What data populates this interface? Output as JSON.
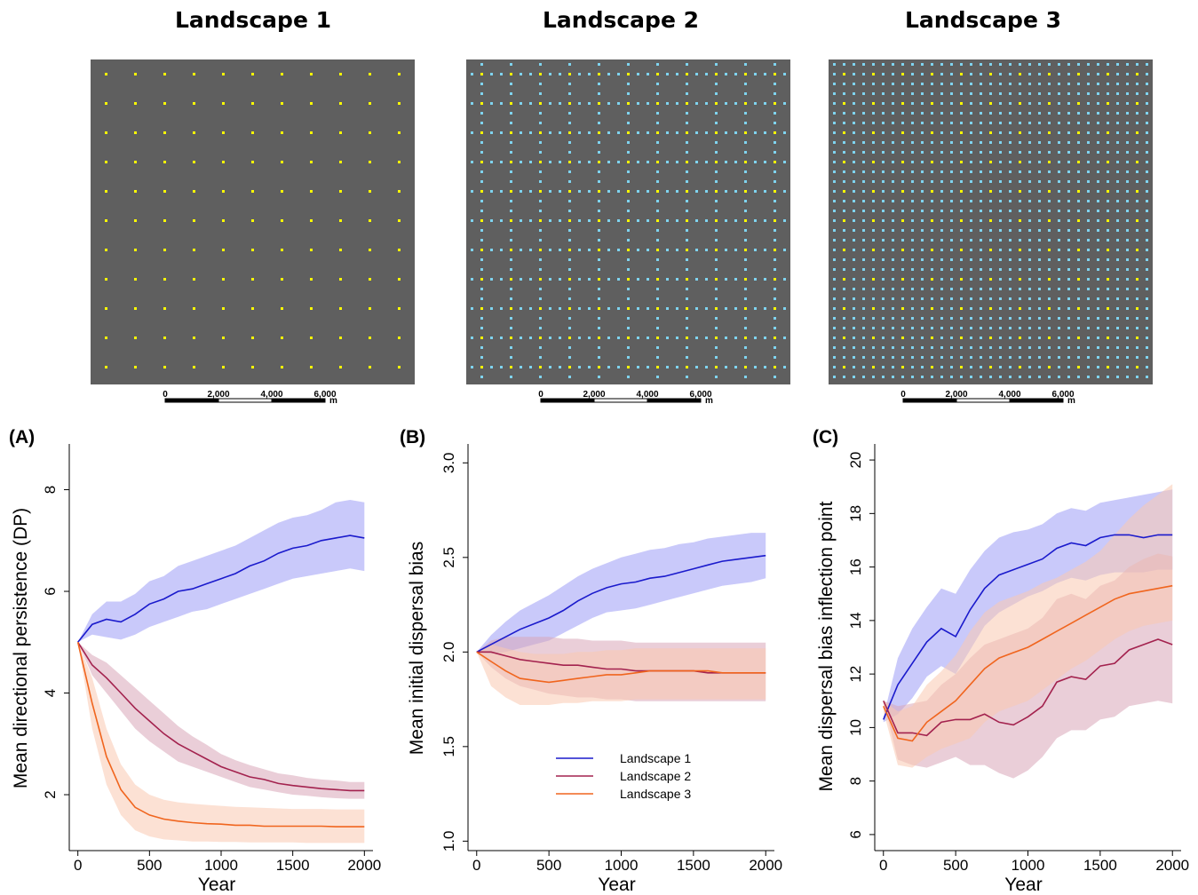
{
  "landscapes": [
    {
      "title": "Landscape 1",
      "scale_ticks": [
        "0",
        "2,000",
        "4,000",
        "6,000"
      ],
      "scale_unit": "m"
    },
    {
      "title": "Landscape 2",
      "scale_ticks": [
        "0",
        "2,000",
        "4,000",
        "6,000"
      ],
      "scale_unit": "m"
    },
    {
      "title": "Landscape 3",
      "scale_ticks": [
        "0",
        "2,000",
        "4,000",
        "6,000"
      ],
      "scale_unit": "m"
    }
  ],
  "colors": {
    "map_background": "#5f5f5f",
    "patch_yellow": "#ffff00",
    "patch_cyan": "#7fd4f0",
    "landscape1": "#1a1acc",
    "landscape2": "#a3224e",
    "landscape3": "#f0651e",
    "band1": "#9d9df5",
    "band2": "#d9a6b8",
    "band3": "#f9c8b0"
  },
  "chart_data": [
    {
      "type": "line",
      "panel_label": "(A)",
      "xlabel": "Year",
      "ylabel": "Mean directional persistence (DP)",
      "xlim": [
        -60,
        2060
      ],
      "ylim": [
        0.9,
        8.9
      ],
      "xticks": [
        0,
        500,
        1000,
        1500,
        2000
      ],
      "yticks": [
        2,
        4,
        6,
        8
      ],
      "x": [
        0,
        100,
        200,
        300,
        400,
        500,
        600,
        700,
        800,
        900,
        1000,
        1100,
        1200,
        1300,
        1400,
        1500,
        1600,
        1700,
        1800,
        1900,
        2000
      ],
      "series": [
        {
          "name": "Landscape 1",
          "values": [
            5.0,
            5.35,
            5.45,
            5.4,
            5.55,
            5.75,
            5.85,
            6.0,
            6.05,
            6.15,
            6.25,
            6.35,
            6.5,
            6.6,
            6.75,
            6.85,
            6.9,
            7.0,
            7.05,
            7.1,
            7.05
          ],
          "lower": [
            5.0,
            5.15,
            5.1,
            5.05,
            5.15,
            5.3,
            5.4,
            5.5,
            5.6,
            5.65,
            5.75,
            5.85,
            5.95,
            6.05,
            6.15,
            6.25,
            6.3,
            6.35,
            6.4,
            6.45,
            6.4
          ],
          "upper": [
            5.0,
            5.55,
            5.8,
            5.8,
            5.95,
            6.2,
            6.3,
            6.5,
            6.6,
            6.7,
            6.8,
            6.9,
            7.05,
            7.2,
            7.35,
            7.45,
            7.5,
            7.6,
            7.75,
            7.8,
            7.75
          ]
        },
        {
          "name": "Landscape 2",
          "values": [
            5.0,
            4.55,
            4.3,
            4.0,
            3.7,
            3.45,
            3.2,
            3.0,
            2.85,
            2.7,
            2.55,
            2.45,
            2.35,
            2.3,
            2.22,
            2.18,
            2.15,
            2.12,
            2.1,
            2.08,
            2.08
          ],
          "lower": [
            5.0,
            4.35,
            4.0,
            3.65,
            3.3,
            3.05,
            2.85,
            2.65,
            2.55,
            2.45,
            2.35,
            2.25,
            2.15,
            2.1,
            2.05,
            2.0,
            1.98,
            1.95,
            1.93,
            1.92,
            1.92
          ],
          "upper": [
            5.0,
            4.75,
            4.6,
            4.35,
            4.1,
            3.85,
            3.6,
            3.35,
            3.15,
            2.98,
            2.8,
            2.68,
            2.58,
            2.5,
            2.42,
            2.38,
            2.33,
            2.3,
            2.28,
            2.25,
            2.25
          ]
        },
        {
          "name": "Landscape 3",
          "values": [
            5.0,
            3.8,
            2.75,
            2.1,
            1.75,
            1.6,
            1.52,
            1.48,
            1.45,
            1.43,
            1.42,
            1.4,
            1.4,
            1.38,
            1.38,
            1.38,
            1.38,
            1.38,
            1.37,
            1.37,
            1.37
          ],
          "lower": [
            5.0,
            3.3,
            2.2,
            1.6,
            1.3,
            1.18,
            1.12,
            1.1,
            1.08,
            1.08,
            1.07,
            1.07,
            1.06,
            1.06,
            1.06,
            1.06,
            1.05,
            1.05,
            1.05,
            1.05,
            1.05
          ],
          "upper": [
            5.0,
            4.3,
            3.3,
            2.6,
            2.2,
            2.0,
            1.9,
            1.85,
            1.82,
            1.8,
            1.78,
            1.76,
            1.75,
            1.74,
            1.73,
            1.72,
            1.72,
            1.72,
            1.71,
            1.71,
            1.71
          ]
        }
      ]
    },
    {
      "type": "line",
      "panel_label": "(B)",
      "xlabel": "Year",
      "ylabel": "Mean initial dispersal bias",
      "xlim": [
        -60,
        2060
      ],
      "ylim": [
        0.95,
        3.1
      ],
      "xticks": [
        0,
        500,
        1000,
        1500,
        2000
      ],
      "yticks": [
        1.0,
        1.5,
        2.0,
        2.5,
        3.0
      ],
      "ytick_labels": [
        "1.0",
        "1.5",
        "2.0",
        "2.5",
        "3.0"
      ],
      "legend": {
        "placement": "center",
        "entries": [
          "Landscape 1",
          "Landscape 2",
          "Landscape 3"
        ]
      },
      "x": [
        0,
        100,
        200,
        300,
        400,
        500,
        600,
        700,
        800,
        900,
        1000,
        1100,
        1200,
        1300,
        1400,
        1500,
        1600,
        1700,
        1800,
        1900,
        2000
      ],
      "series": [
        {
          "name": "Landscape 1",
          "values": [
            2.0,
            2.04,
            2.08,
            2.12,
            2.15,
            2.18,
            2.22,
            2.27,
            2.31,
            2.34,
            2.36,
            2.37,
            2.39,
            2.4,
            2.42,
            2.44,
            2.46,
            2.48,
            2.49,
            2.5,
            2.51
          ],
          "lower": [
            2.0,
            1.99,
            2.0,
            2.02,
            2.04,
            2.06,
            2.1,
            2.14,
            2.18,
            2.21,
            2.22,
            2.23,
            2.25,
            2.27,
            2.29,
            2.31,
            2.33,
            2.35,
            2.36,
            2.37,
            2.39
          ],
          "upper": [
            2.0,
            2.09,
            2.16,
            2.22,
            2.26,
            2.3,
            2.35,
            2.4,
            2.44,
            2.47,
            2.5,
            2.52,
            2.54,
            2.55,
            2.57,
            2.58,
            2.6,
            2.61,
            2.62,
            2.63,
            2.63
          ]
        },
        {
          "name": "Landscape 2",
          "values": [
            2.0,
            2.0,
            1.98,
            1.96,
            1.95,
            1.94,
            1.93,
            1.93,
            1.92,
            1.91,
            1.91,
            1.9,
            1.9,
            1.9,
            1.9,
            1.9,
            1.89,
            1.89,
            1.89,
            1.89,
            1.89
          ],
          "lower": [
            2.0,
            1.92,
            1.86,
            1.82,
            1.8,
            1.78,
            1.77,
            1.76,
            1.76,
            1.75,
            1.75,
            1.74,
            1.74,
            1.74,
            1.74,
            1.74,
            1.74,
            1.74,
            1.74,
            1.74,
            1.74
          ],
          "upper": [
            2.0,
            2.06,
            2.08,
            2.08,
            2.08,
            2.08,
            2.07,
            2.07,
            2.06,
            2.06,
            2.06,
            2.05,
            2.05,
            2.05,
            2.05,
            2.05,
            2.05,
            2.05,
            2.05,
            2.05,
            2.05
          ]
        },
        {
          "name": "Landscape 3",
          "values": [
            2.0,
            1.95,
            1.9,
            1.86,
            1.85,
            1.84,
            1.85,
            1.86,
            1.87,
            1.88,
            1.88,
            1.89,
            1.9,
            1.9,
            1.9,
            1.9,
            1.9,
            1.89,
            1.89,
            1.89,
            1.89
          ],
          "lower": [
            2.0,
            1.82,
            1.76,
            1.72,
            1.72,
            1.72,
            1.73,
            1.73,
            1.74,
            1.74,
            1.74,
            1.75,
            1.75,
            1.75,
            1.75,
            1.75,
            1.75,
            1.75,
            1.75,
            1.75,
            1.75
          ],
          "upper": [
            2.0,
            2.04,
            2.02,
            2.0,
            1.99,
            1.99,
            1.99,
            2.0,
            2.0,
            2.01,
            2.01,
            2.02,
            2.02,
            2.02,
            2.02,
            2.02,
            2.02,
            2.02,
            2.02,
            2.02,
            2.02
          ]
        }
      ]
    },
    {
      "type": "line",
      "panel_label": "(C)",
      "xlabel": "Year",
      "ylabel": "Mean dispersal bias inflection point",
      "xlim": [
        -60,
        2060
      ],
      "ylim": [
        5.4,
        20.6
      ],
      "xticks": [
        0,
        500,
        1000,
        1500,
        2000
      ],
      "yticks": [
        6,
        8,
        10,
        12,
        14,
        16,
        18,
        20
      ],
      "x": [
        0,
        100,
        200,
        300,
        400,
        500,
        600,
        700,
        800,
        900,
        1000,
        1100,
        1200,
        1300,
        1400,
        1500,
        1600,
        1700,
        1800,
        1900,
        2000
      ],
      "series": [
        {
          "name": "Landscape 1",
          "values": [
            10.3,
            11.6,
            12.4,
            13.2,
            13.7,
            13.4,
            14.4,
            15.2,
            15.7,
            15.9,
            16.1,
            16.3,
            16.7,
            16.9,
            16.8,
            17.1,
            17.2,
            17.2,
            17.1,
            17.2,
            17.2
          ],
          "lower": [
            10.2,
            10.5,
            11.1,
            11.9,
            12.3,
            12.0,
            12.9,
            13.8,
            14.3,
            14.6,
            14.9,
            15.1,
            15.4,
            15.6,
            15.5,
            15.7,
            15.8,
            15.8,
            15.8,
            15.9,
            15.9
          ],
          "upper": [
            10.4,
            12.6,
            13.7,
            14.5,
            15.2,
            15.0,
            15.9,
            16.6,
            17.1,
            17.3,
            17.4,
            17.6,
            18.0,
            18.2,
            18.1,
            18.4,
            18.5,
            18.6,
            18.7,
            18.8,
            18.9
          ]
        },
        {
          "name": "Landscape 2",
          "values": [
            11.0,
            9.8,
            9.8,
            9.7,
            10.2,
            10.3,
            10.3,
            10.5,
            10.2,
            10.1,
            10.4,
            10.8,
            11.7,
            11.9,
            11.8,
            12.3,
            12.4,
            12.9,
            13.1,
            13.3,
            13.1
          ],
          "lower": [
            11.0,
            8.8,
            8.6,
            8.5,
            8.7,
            8.9,
            8.6,
            8.6,
            8.3,
            8.1,
            8.4,
            8.9,
            9.6,
            9.9,
            9.9,
            10.3,
            10.4,
            10.8,
            10.9,
            11.0,
            10.9
          ],
          "upper": [
            11.0,
            10.8,
            10.9,
            11.0,
            11.6,
            12.0,
            12.6,
            13.1,
            13.3,
            13.5,
            13.7,
            14.1,
            14.8,
            15.0,
            14.8,
            15.3,
            15.5,
            16.0,
            16.3,
            16.5,
            16.4
          ]
        },
        {
          "name": "Landscape 3",
          "values": [
            10.8,
            9.6,
            9.5,
            10.2,
            10.6,
            11.0,
            11.6,
            12.2,
            12.6,
            12.8,
            13.0,
            13.3,
            13.6,
            13.9,
            14.2,
            14.5,
            14.8,
            15.0,
            15.1,
            15.2,
            15.3
          ],
          "lower": [
            10.6,
            8.6,
            8.5,
            8.9,
            9.2,
            9.4,
            9.6,
            10.2,
            10.6,
            10.8,
            11.0,
            11.4,
            11.8,
            12.2,
            12.5,
            12.9,
            13.3,
            13.6,
            13.8,
            13.9,
            14.0
          ],
          "upper": [
            11.0,
            10.6,
            10.8,
            11.6,
            12.1,
            12.7,
            13.6,
            14.3,
            14.7,
            14.9,
            15.1,
            15.4,
            15.6,
            15.9,
            16.2,
            16.6,
            17.2,
            17.8,
            18.3,
            18.7,
            19.1
          ]
        }
      ]
    }
  ]
}
